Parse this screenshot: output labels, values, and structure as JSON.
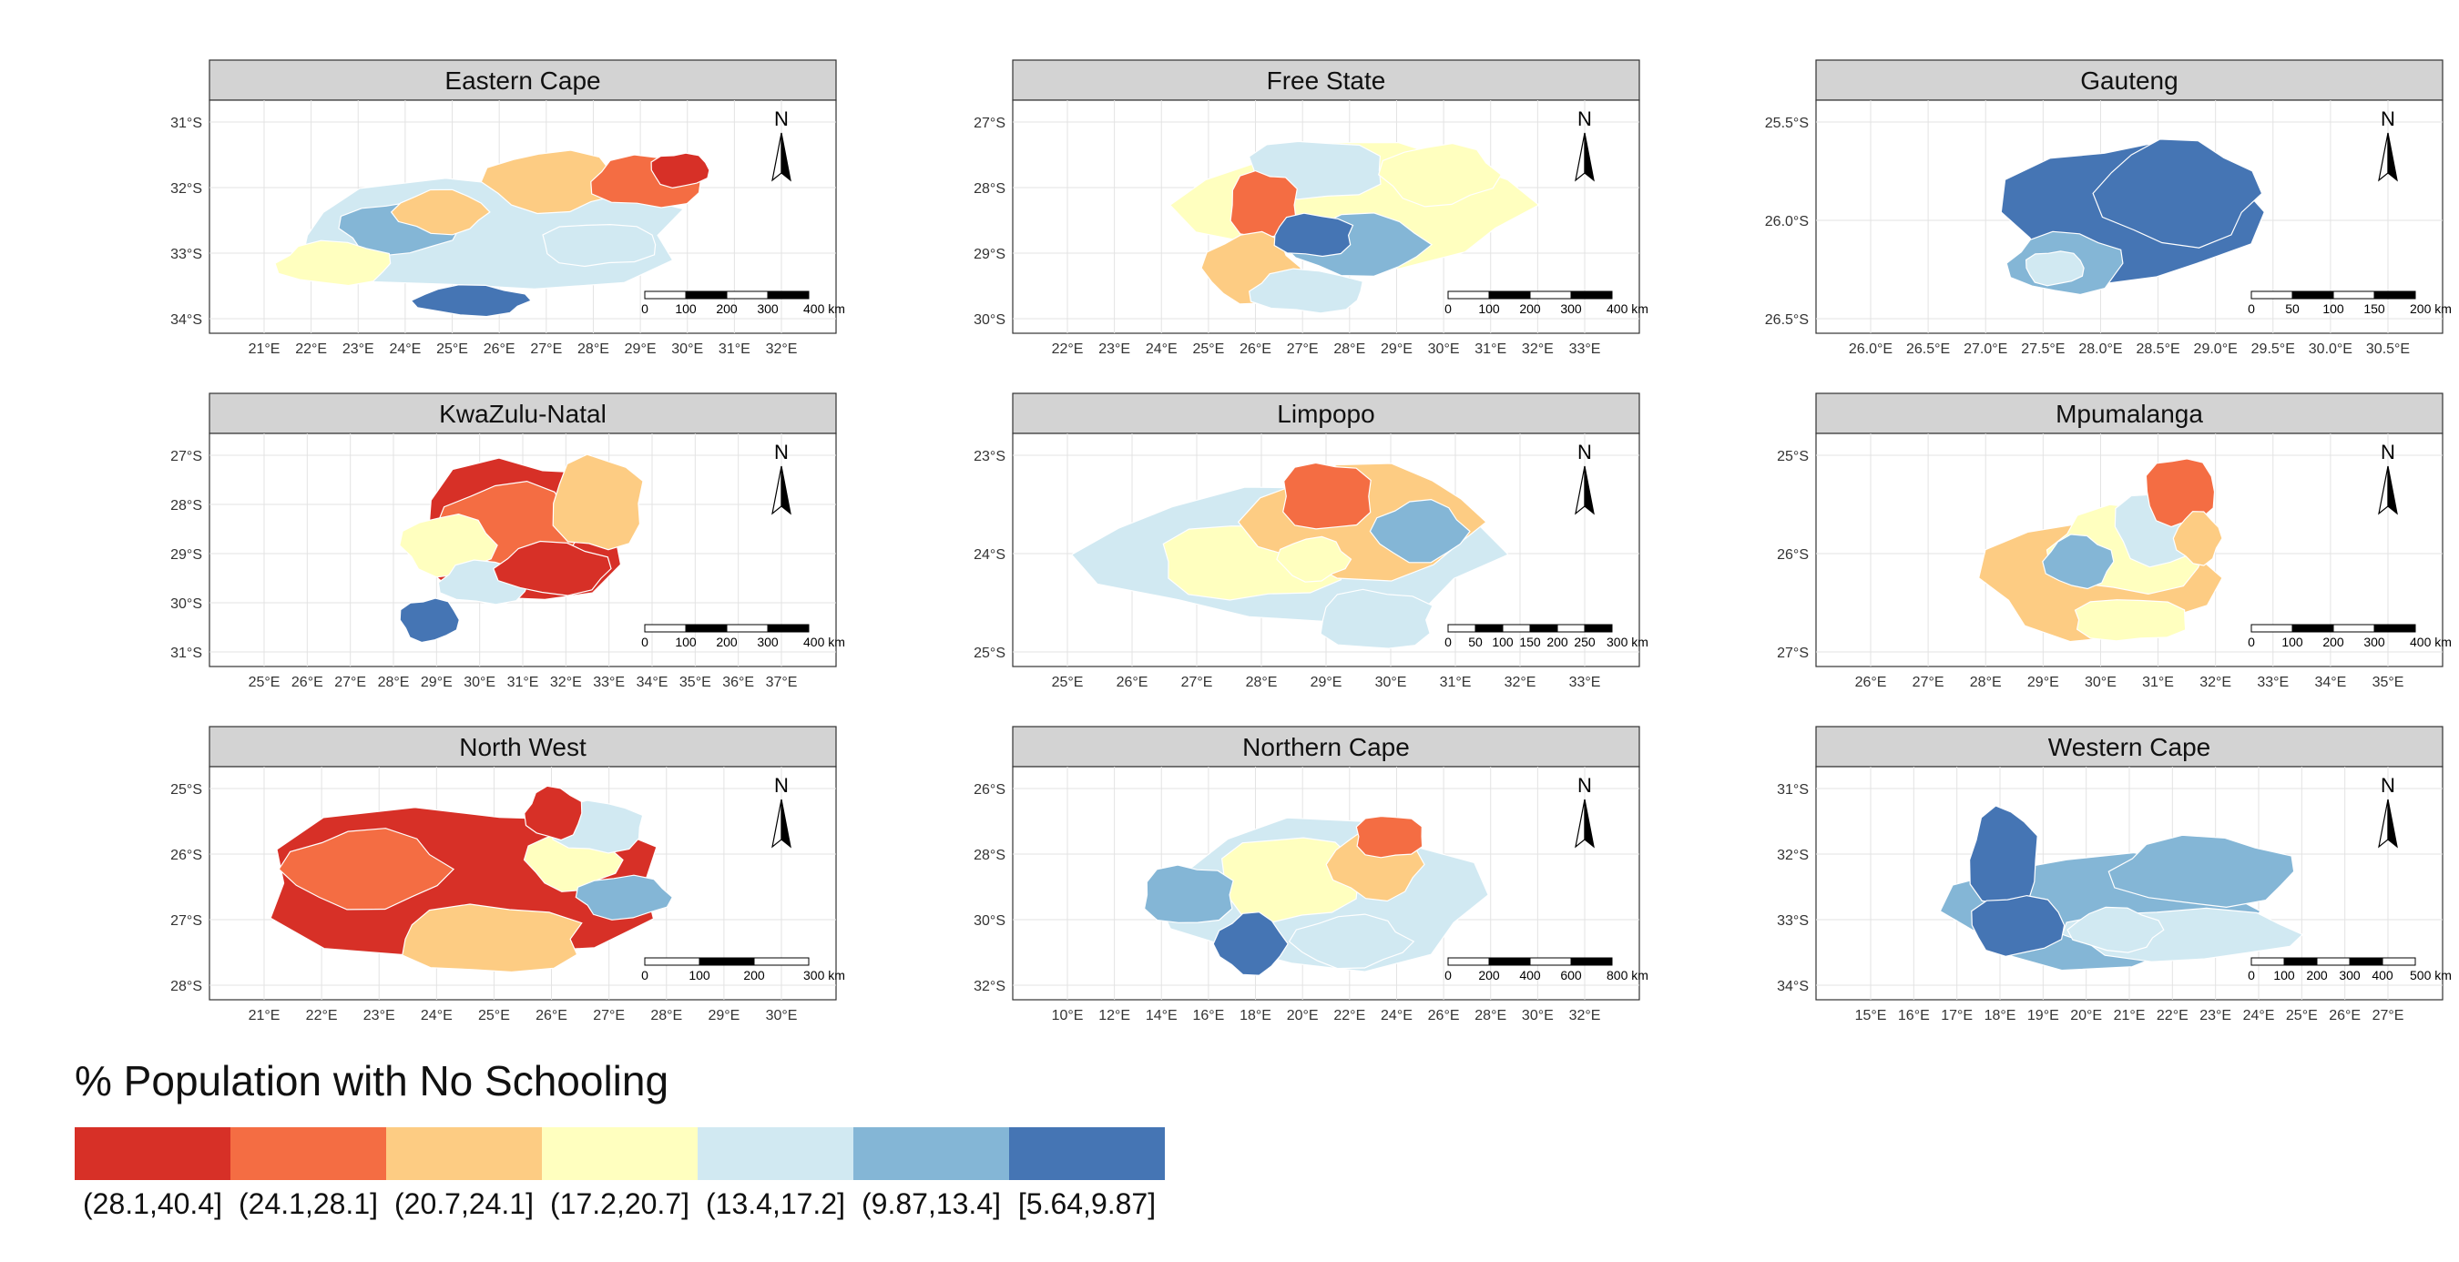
{
  "colors": {
    "bin1": "#d73027",
    "bin2": "#f46d43",
    "bin3": "#fdcc83",
    "bin4": "#ffffbf",
    "bin5": "#d1e9f2",
    "bin6": "#84b6d6",
    "bin7": "#4575b4",
    "strip": "#d3d3d3",
    "grid": "#e3e3e3"
  },
  "legend": {
    "title": "% Population with No Schooling",
    "bins": [
      {
        "label": "(28.1,40.4]",
        "color": "#d73027"
      },
      {
        "label": "(24.1,28.1]",
        "color": "#f46d43"
      },
      {
        "label": "(20.7,24.1]",
        "color": "#fdcc83"
      },
      {
        "label": "(17.2,20.7]",
        "color": "#ffffbf"
      },
      {
        "label": "(13.4,17.2]",
        "color": "#d1e9f2"
      },
      {
        "label": "(9.87,13.4]",
        "color": "#84b6d6"
      },
      {
        "label": "[5.64,9.87]",
        "color": "#4575b4"
      }
    ]
  },
  "north_label": "N",
  "panels": [
    {
      "title": "Eastern Cape",
      "lat_ticks": [
        "31°S",
        "32°S",
        "33°S",
        "34°S"
      ],
      "lon_ticks": [
        "21°E",
        "22°E",
        "23°E",
        "24°E",
        "25°E",
        "26°E",
        "27°E",
        "28°E",
        "29°E",
        "30°E",
        "31°E",
        "32°E"
      ],
      "scale_labels": [
        "0",
        "100",
        "200",
        "300",
        "400 km"
      ],
      "scale_segments": 4,
      "palette": [
        "bin5",
        "bin3",
        "bin2",
        "bin6",
        "bin4",
        "bin1",
        "bin7"
      ]
    },
    {
      "title": "Free State",
      "lat_ticks": [
        "27°S",
        "28°S",
        "29°S",
        "30°S"
      ],
      "lon_ticks": [
        "22°E",
        "23°E",
        "24°E",
        "25°E",
        "26°E",
        "27°E",
        "28°E",
        "29°E",
        "30°E",
        "31°E",
        "32°E",
        "33°E"
      ],
      "scale_labels": [
        "0",
        "100",
        "200",
        "300",
        "400 km"
      ],
      "scale_segments": 4,
      "palette": [
        "bin4",
        "bin5",
        "bin6",
        "bin2",
        "bin3",
        "bin7"
      ]
    },
    {
      "title": "Gauteng",
      "lat_ticks": [
        "25.5°S",
        "26.0°S",
        "26.5°S"
      ],
      "lon_ticks": [
        "26.0°E",
        "26.5°E",
        "27.0°E",
        "27.5°E",
        "28.0°E",
        "28.5°E",
        "29.0°E",
        "29.5°E",
        "30.0°E",
        "30.5°E"
      ],
      "scale_labels": [
        "0",
        "50",
        "100",
        "150",
        "200 km"
      ],
      "scale_segments": 4,
      "palette": [
        "bin7",
        "bin6",
        "bin5"
      ]
    },
    {
      "title": "KwaZulu-Natal",
      "lat_ticks": [
        "27°S",
        "28°S",
        "29°S",
        "30°S",
        "31°S"
      ],
      "lon_ticks": [
        "25°E",
        "26°E",
        "27°E",
        "28°E",
        "29°E",
        "30°E",
        "31°E",
        "32°E",
        "33°E",
        "34°E",
        "35°E",
        "36°E",
        "37°E"
      ],
      "scale_labels": [
        "0",
        "100",
        "200",
        "300",
        "400 km"
      ],
      "scale_segments": 4,
      "palette": [
        "bin1",
        "bin2",
        "bin3",
        "bin4",
        "bin5",
        "bin7"
      ]
    },
    {
      "title": "Limpopo",
      "lat_ticks": [
        "23°S",
        "24°S",
        "25°S"
      ],
      "lon_ticks": [
        "25°E",
        "26°E",
        "27°E",
        "28°E",
        "29°E",
        "30°E",
        "31°E",
        "32°E",
        "33°E"
      ],
      "scale_labels": [
        "0",
        "50",
        "100",
        "150",
        "200",
        "250",
        "300 km"
      ],
      "scale_segments": 6,
      "palette": [
        "bin5",
        "bin4",
        "bin3",
        "bin2",
        "bin6"
      ]
    },
    {
      "title": "Mpumalanga",
      "lat_ticks": [
        "25°S",
        "26°S",
        "27°S"
      ],
      "lon_ticks": [
        "26°E",
        "27°E",
        "28°E",
        "29°E",
        "30°E",
        "31°E",
        "32°E",
        "33°E",
        "34°E",
        "35°E"
      ],
      "scale_labels": [
        "0",
        "100",
        "200",
        "300",
        "400 km"
      ],
      "scale_segments": 4,
      "palette": [
        "bin3",
        "bin4",
        "bin5",
        "bin6",
        "bin2"
      ]
    },
    {
      "title": "North West",
      "lat_ticks": [
        "25°S",
        "26°S",
        "27°S",
        "28°S"
      ],
      "lon_ticks": [
        "21°E",
        "22°E",
        "23°E",
        "24°E",
        "25°E",
        "26°E",
        "27°E",
        "28°E",
        "29°E",
        "30°E"
      ],
      "scale_labels": [
        "0",
        "100",
        "200",
        "300 km"
      ],
      "scale_segments": 3,
      "palette": [
        "bin1",
        "bin2",
        "bin3",
        "bin4",
        "bin5",
        "bin6"
      ]
    },
    {
      "title": "Northern Cape",
      "lat_ticks": [
        "26°S",
        "28°S",
        "30°S",
        "32°S"
      ],
      "lon_ticks": [
        "10°E",
        "12°E",
        "14°E",
        "16°E",
        "18°E",
        "20°E",
        "22°E",
        "24°E",
        "26°E",
        "28°E",
        "30°E",
        "32°E"
      ],
      "scale_labels": [
        "0",
        "200",
        "400",
        "600",
        "800 km"
      ],
      "scale_segments": 4,
      "palette": [
        "bin5",
        "bin4",
        "bin3",
        "bin2",
        "bin7",
        "bin6"
      ]
    },
    {
      "title": "Western Cape",
      "lat_ticks": [
        "31°S",
        "32°S",
        "33°S",
        "34°S"
      ],
      "lon_ticks": [
        "15°E",
        "16°E",
        "17°E",
        "18°E",
        "19°E",
        "20°E",
        "21°E",
        "22°E",
        "23°E",
        "24°E",
        "25°E",
        "26°E",
        "27°E"
      ],
      "scale_labels": [
        "0",
        "100",
        "200",
        "300",
        "400",
        "500 km"
      ],
      "scale_segments": 5,
      "palette": [
        "bin6",
        "bin7",
        "bin5"
      ]
    }
  ]
}
